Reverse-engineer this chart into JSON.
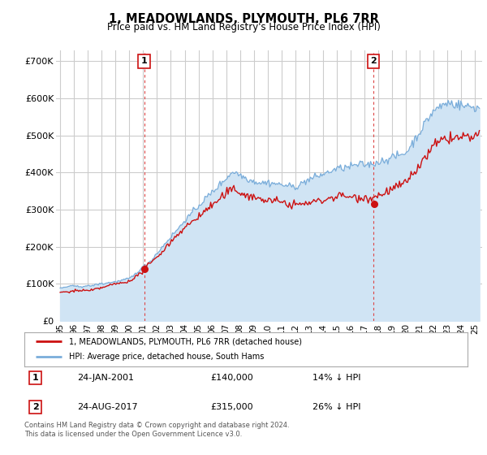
{
  "title": "1, MEADOWLANDS, PLYMOUTH, PL6 7RR",
  "subtitle": "Price paid vs. HM Land Registry's House Price Index (HPI)",
  "hpi_label": "HPI: Average price, detached house, South Hams",
  "property_label": "1, MEADOWLANDS, PLYMOUTH, PL6 7RR (detached house)",
  "annotation1": {
    "label": "1",
    "date": "24-JAN-2001",
    "price": "£140,000",
    "pct": "14% ↓ HPI",
    "year": 2001.07
  },
  "annotation2": {
    "label": "2",
    "date": "24-AUG-2017",
    "price": "£315,000",
    "pct": "26% ↓ HPI",
    "year": 2017.65
  },
  "footer": "Contains HM Land Registry data © Crown copyright and database right 2024.\nThis data is licensed under the Open Government Licence v3.0.",
  "ylim": [
    0,
    730000
  ],
  "yticks": [
    0,
    100000,
    200000,
    300000,
    400000,
    500000,
    600000,
    700000
  ],
  "ytick_labels": [
    "£0",
    "£100K",
    "£200K",
    "£300K",
    "£400K",
    "£500K",
    "£600K",
    "£700K"
  ],
  "background_color": "#ffffff",
  "plot_bg_color": "#ffffff",
  "hpi_color": "#7aadda",
  "hpi_fill_color": "#d0e4f4",
  "property_color": "#cc1111",
  "vline_color": "#dd4444",
  "grid_color": "#cccccc",
  "annotation_border_color": "#cc1111",
  "annotation_text_color": "#000000",
  "legend_border_color": "#aaaaaa"
}
